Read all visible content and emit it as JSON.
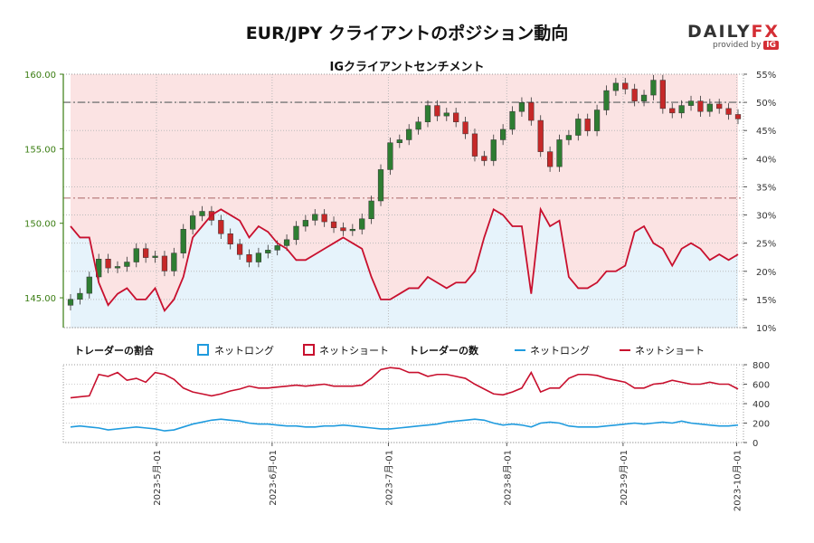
{
  "title": "EUR/JPY クライアントのポジション動向",
  "subtitle": "IGクライアントセンチメント",
  "logo": {
    "brand_left": "DAILY",
    "brand_right": "FX",
    "provided_by": "provided by",
    "ig": "IG"
  },
  "colors": {
    "long": "#1f9bde",
    "short": "#c8102e",
    "long_fill": "#e6f3fb",
    "short_fill": "#fbe3e3",
    "up_candle": "#2e7d32",
    "down_candle": "#c62828",
    "axis_left": "#3a7d12"
  },
  "legend": {
    "ratio_title": "トレーダーの割合",
    "count_title": "トレーダーの数",
    "long_label": "ネットロング",
    "short_label": "ネットショート"
  },
  "chart_data": [
    {
      "type": "candlestick",
      "name": "price",
      "ylim": [
        143.0,
        160.0
      ],
      "yticks": [
        145.0,
        150.0,
        155.0,
        160.0
      ],
      "ytick_labels": [
        "145.00",
        "150.00",
        "155.00",
        "160.00"
      ],
      "x_dates": [
        "2023-04-13",
        "2023-10-04"
      ],
      "ohlc_close": [
        144.9,
        145.3,
        146.4,
        147.6,
        147.0,
        147.1,
        147.4,
        148.3,
        147.7,
        147.8,
        146.8,
        148.0,
        149.6,
        150.5,
        150.8,
        150.2,
        149.3,
        148.6,
        147.9,
        147.4,
        148.0,
        148.2,
        148.5,
        148.9,
        149.8,
        150.2,
        150.6,
        150.1,
        149.7,
        149.5,
        149.6,
        150.3,
        151.5,
        153.6,
        155.4,
        155.6,
        156.3,
        156.8,
        157.9,
        157.2,
        157.4,
        156.8,
        156.0,
        154.5,
        154.2,
        155.6,
        156.3,
        157.5,
        158.1,
        156.9,
        154.8,
        153.8,
        155.6,
        155.9,
        157.0,
        156.2,
        157.6,
        158.9,
        159.4,
        159.0,
        158.2,
        158.6,
        159.6,
        157.7,
        157.4,
        157.9,
        158.2,
        157.5,
        158.0,
        157.7,
        157.3,
        157.0
      ],
      "horizontal_lines": [
        {
          "axis": "ratio",
          "value": 50,
          "style": "dashdot"
        },
        {
          "axis": "ratio",
          "value": 33,
          "style": "dashdot"
        }
      ]
    },
    {
      "type": "line",
      "name": "ratio",
      "ylim": [
        10,
        55
      ],
      "yticks": [
        10,
        15,
        20,
        25,
        30,
        35,
        40,
        45,
        50,
        55
      ],
      "ytick_labels": [
        "10%",
        "15%",
        "20%",
        "25%",
        "30%",
        "35%",
        "40%",
        "45%",
        "50%",
        "55%"
      ],
      "series": [
        {
          "name": "ネットショート",
          "values": [
            28,
            26,
            26,
            18,
            14,
            16,
            17,
            15,
            15,
            17,
            13,
            15,
            19,
            26,
            28,
            30,
            31,
            30,
            29,
            26,
            28,
            27,
            25,
            24,
            22,
            22,
            23,
            24,
            25,
            26,
            25,
            24,
            19,
            15,
            15,
            16,
            17,
            17,
            19,
            18,
            17,
            18,
            18,
            20,
            26,
            31,
            30,
            28,
            28,
            16,
            31,
            28,
            29,
            19,
            17,
            17,
            18,
            20,
            20,
            21,
            27,
            28,
            25,
            24,
            21,
            24,
            25,
            24,
            22,
            23,
            22,
            23
          ]
        }
      ]
    },
    {
      "type": "line",
      "name": "counts",
      "ylim": [
        0,
        800
      ],
      "yticks": [
        0,
        200,
        400,
        600,
        800
      ],
      "ytick_labels": [
        "0",
        "200",
        "400",
        "600",
        "800"
      ],
      "x_ticks": [
        "2023-5月-01",
        "2023-6月-01",
        "2023-7月-01",
        "2023-8月-01",
        "2023-9月-01",
        "2023-10月-01"
      ],
      "series": [
        {
          "name": "ネットロング",
          "values": [
            160,
            170,
            160,
            150,
            130,
            140,
            150,
            160,
            150,
            140,
            120,
            130,
            160,
            190,
            210,
            230,
            240,
            230,
            220,
            200,
            190,
            190,
            180,
            170,
            170,
            160,
            160,
            170,
            170,
            180,
            170,
            160,
            150,
            140,
            140,
            150,
            160,
            170,
            180,
            190,
            210,
            220,
            230,
            240,
            230,
            200,
            180,
            190,
            180,
            160,
            200,
            210,
            200,
            170,
            160,
            160,
            160,
            170,
            180,
            190,
            200,
            190,
            200,
            210,
            200,
            220,
            200,
            190,
            180,
            170,
            170,
            180
          ]
        },
        {
          "name": "ネットショート",
          "values": [
            460,
            470,
            480,
            700,
            680,
            720,
            640,
            660,
            620,
            720,
            700,
            650,
            560,
            520,
            500,
            480,
            500,
            530,
            550,
            580,
            560,
            560,
            570,
            580,
            590,
            580,
            590,
            600,
            580,
            580,
            580,
            590,
            660,
            750,
            770,
            760,
            720,
            720,
            680,
            700,
            700,
            680,
            660,
            600,
            550,
            500,
            490,
            520,
            560,
            720,
            520,
            560,
            560,
            660,
            700,
            700,
            690,
            660,
            640,
            620,
            560,
            560,
            600,
            610,
            640,
            620,
            600,
            600,
            620,
            600,
            600,
            550
          ]
        }
      ]
    }
  ]
}
